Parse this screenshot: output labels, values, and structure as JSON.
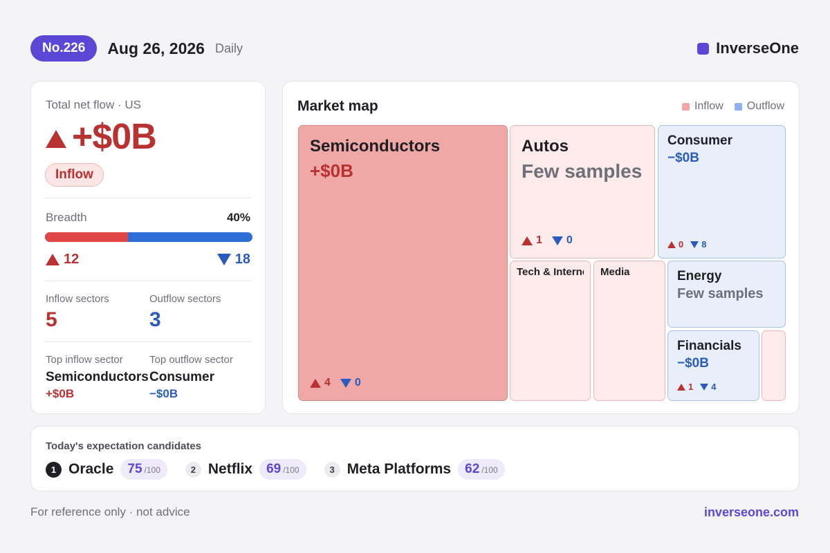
{
  "header": {
    "issue": "No.226",
    "date": "Aug 26, 2026",
    "frequency": "Daily",
    "brand": "InverseOne",
    "brand_color": "#5b47d6"
  },
  "summary": {
    "net_flow_label": "Total net flow · US",
    "net_flow_value": "+$0B",
    "direction_label": "Inflow",
    "breadth_label": "Breadth",
    "breadth_pct": "40%",
    "breadth_fraction": 0.4,
    "breadth_up": "12",
    "breadth_down": "18",
    "inflow_sectors_label": "Inflow sectors",
    "inflow_sectors": "5",
    "outflow_sectors_label": "Outflow sectors",
    "outflow_sectors": "3",
    "top_inflow_label": "Top inflow sector",
    "top_inflow_name": "Semiconductors",
    "top_inflow_value": "+$0B",
    "top_outflow_label": "Top outflow sector",
    "top_outflow_name": "Consumer",
    "top_outflow_value": "−$0B"
  },
  "market_map": {
    "title": "Market map",
    "legend_inflow": "Inflow",
    "legend_outflow": "Outflow",
    "inflow_color": "#efa8a6",
    "outflow_color": "#8fb0ec",
    "tiles": {
      "semiconductors": {
        "name": "Semiconductors",
        "value": "+$0B",
        "up": "4",
        "down": "0"
      },
      "autos": {
        "name": "Autos",
        "note": "Few samples",
        "up": "1",
        "down": "0"
      },
      "consumer": {
        "name": "Consumer",
        "value": "−$0B",
        "up": "0",
        "down": "8"
      },
      "tech": {
        "name": "Tech & Internet"
      },
      "media": {
        "name": "Media"
      },
      "energy": {
        "name": "Energy",
        "note": "Few samples"
      },
      "financials": {
        "name": "Financials",
        "value": "−$0B",
        "up": "1",
        "down": "4"
      }
    }
  },
  "candidates": {
    "title": "Today's expectation candidates",
    "items": [
      {
        "rank": "1",
        "name": "Oracle",
        "score": "75",
        "max": "/100"
      },
      {
        "rank": "2",
        "name": "Netflix",
        "score": "69",
        "max": "/100"
      },
      {
        "rank": "3",
        "name": "Meta Platforms",
        "score": "62",
        "max": "/100"
      }
    ]
  },
  "footer": {
    "note": "For reference only · not advice",
    "link": "inverseone.com"
  }
}
